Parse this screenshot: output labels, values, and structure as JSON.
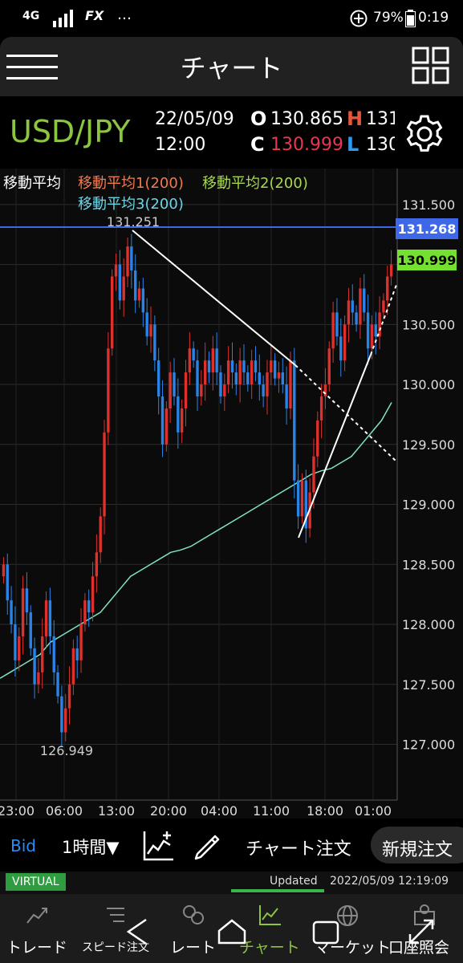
{
  "status_bar": {
    "network": "4G",
    "app_badge": "FX",
    "more": "…",
    "battery": "79%",
    "time": "0:19"
  },
  "header": {
    "title": "チャート",
    "menu_icon": "hamburger-icon",
    "layout_icon": "grid-icon"
  },
  "quote": {
    "pair": "USD/JPY",
    "date": "22/05/09",
    "time": "12:00",
    "open_label": "O",
    "open": "130.865",
    "high_label": "H",
    "high": "131",
    "close_label": "C",
    "close": "130.999",
    "low_label": "L",
    "low": "130",
    "settings_icon": "gear-icon"
  },
  "indicators": {
    "main": "移動平均",
    "ma1": "移動平均1(200)",
    "ma2": "移動平均2(200)",
    "ma3": "移動平均3(200)"
  },
  "colors": {
    "up": "#e0302c",
    "down": "#2a84e8",
    "ma3": "#7fe3c4",
    "hline": "#3f68e8",
    "price_badge": "#74e030",
    "pair": "#8cc53f"
  },
  "chart_data": {
    "type": "candlestick",
    "y_ticks": [
      "131.500",
      "131.000",
      "130.500",
      "130.000",
      "129.500",
      "129.000",
      "128.500",
      "128.000",
      "127.500",
      "127.000"
    ],
    "y_tick_values": [
      131.5,
      131.0,
      130.5,
      130.0,
      129.5,
      129.0,
      128.5,
      128.0,
      127.5,
      127.0
    ],
    "ylim": [
      126.535,
      131.8
    ],
    "x_ticks": [
      "23:00",
      "06:00",
      "13:00",
      "20:00",
      "04:00",
      "11:00",
      "18:00",
      "01:00"
    ],
    "horizontal_line_value": "131.268",
    "current_price": "130.999",
    "high_annotation": "131.251",
    "low_annotation": "126.949",
    "bar_interval": "1時間",
    "price_type": "Bid",
    "series_close": [
      128.5,
      128.2,
      128.0,
      127.7,
      127.9,
      128.3,
      128.1,
      127.8,
      127.5,
      127.6,
      127.9,
      128.2,
      127.9,
      127.6,
      127.4,
      127.1,
      127.3,
      127.5,
      127.8,
      127.7,
      128.0,
      128.2,
      128.1,
      128.4,
      128.6,
      128.9,
      129.6,
      130.3,
      130.9,
      131.0,
      130.7,
      130.9,
      131.15,
      130.95,
      130.7,
      130.8,
      130.6,
      130.4,
      130.5,
      130.2,
      129.9,
      129.5,
      129.8,
      130.1,
      129.9,
      129.6,
      129.8,
      130.1,
      130.3,
      130.2,
      129.9,
      130.0,
      130.2,
      130.1,
      130.3,
      130.1,
      129.9,
      130.0,
      130.2,
      130.1,
      130.0,
      130.2,
      130.1,
      130.0,
      130.2,
      130.1,
      130.0,
      129.9,
      130.1,
      130.2,
      130.05,
      130.1,
      130.0,
      129.8,
      130.2,
      129.2,
      128.9,
      129.2,
      128.8,
      129.1,
      129.4,
      129.7,
      129.9,
      130.0,
      130.3,
      130.6,
      130.4,
      130.2,
      130.5,
      130.7,
      130.6,
      130.5,
      130.8,
      130.6,
      130.3,
      130.5,
      130.4,
      130.6,
      130.7,
      130.9,
      131.0
    ],
    "ma_series": [
      127.55,
      127.6,
      127.65,
      127.7,
      127.75,
      127.85,
      127.9,
      127.95,
      128.0,
      128.05,
      128.1,
      128.2,
      128.3,
      128.4,
      128.45,
      128.5,
      128.55,
      128.6,
      128.62,
      128.65,
      128.7,
      128.75,
      128.8,
      128.85,
      128.9,
      128.95,
      129.0,
      129.05,
      129.1,
      129.15,
      129.2,
      129.25,
      129.28,
      129.3,
      129.35,
      129.4,
      129.5,
      129.6,
      129.7,
      129.85
    ]
  },
  "toolbar": {
    "bid": "Bid",
    "interval": "1時間▼",
    "indicator_icon": "chart-add-icon",
    "draw_icon": "pencil-icon",
    "chart_order": "チャート注文",
    "new_order": "新規注文"
  },
  "footer": {
    "virtual": "VIRTUAL",
    "updated_label": "Updated",
    "updated_time": "2022/05/09 12:19:09"
  },
  "nav": {
    "items": [
      {
        "label": "トレード",
        "icon": "trade-icon"
      },
      {
        "label": "スピード注文",
        "icon": "speed-order-icon"
      },
      {
        "label": "レート",
        "icon": "rate-icon"
      },
      {
        "label": "チャート",
        "icon": "chart-icon"
      },
      {
        "label": "マーケット",
        "icon": "market-icon"
      },
      {
        "label": "口座照会",
        "icon": "account-icon"
      }
    ],
    "system_back": "back-icon",
    "system_home": "home-icon",
    "system_recents": "recents-icon",
    "system_expand": "expand-icon"
  }
}
